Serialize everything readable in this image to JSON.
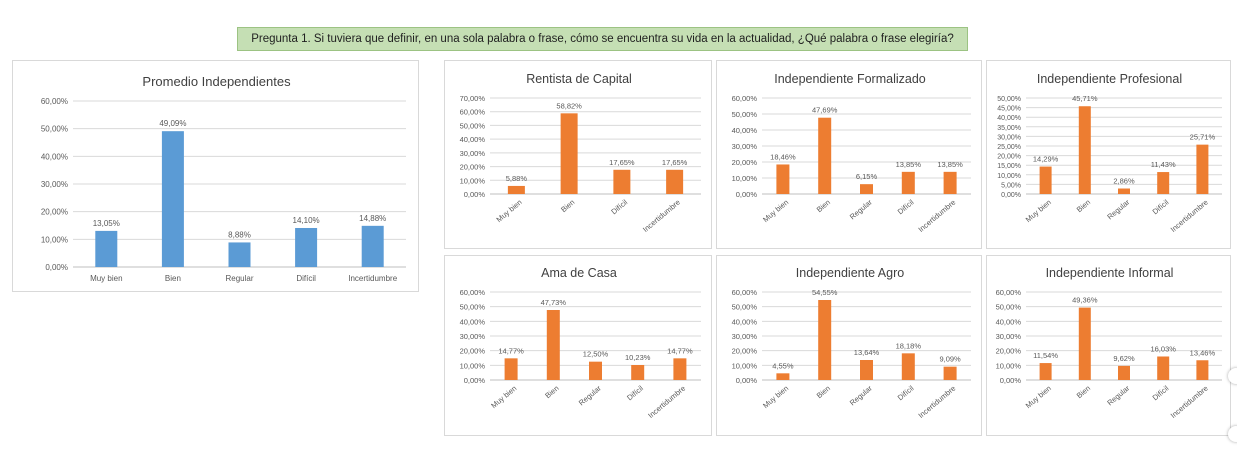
{
  "header": {
    "question": "Pregunta 1. Si tuviera que definir, en una sola palabra o frase, cómo se encuentra su vida en la actualidad, ¿Qué palabra o frase elegiría?"
  },
  "colors": {
    "summary_bar": "#5b9bd5",
    "segment_bar": "#ed7d31",
    "gridline": "#d9d9d9",
    "banner_bg": "#c5dfb4"
  },
  "chart_data": [
    {
      "id": "promedio",
      "type": "bar",
      "title": "Promedio Independientes",
      "categories": [
        "Muy bien",
        "Bien",
        "Regular",
        "Difícil",
        "Incertidumbre"
      ],
      "values": [
        13.05,
        49.09,
        8.88,
        14.1,
        14.88
      ],
      "value_labels": [
        "13,05%",
        "49,09%",
        "8,88%",
        "14,10%",
        "14,88%"
      ],
      "y_ticks": [
        "0,00%",
        "10,00%",
        "20,00%",
        "30,00%",
        "40,00%",
        "50,00%",
        "60,00%"
      ],
      "ylim": [
        0,
        60
      ],
      "grid": true,
      "xlabel": "",
      "ylabel": ""
    },
    {
      "id": "rentista",
      "type": "bar",
      "title": "Rentista de Capital",
      "categories": [
        "Muy bien",
        "Bien",
        "Difícil",
        "Incertidumbre"
      ],
      "values": [
        5.88,
        58.82,
        17.65,
        17.65
      ],
      "value_labels": [
        "5,88%",
        "58,82%",
        "17,65%",
        "17,65%"
      ],
      "y_ticks": [
        "0,00%",
        "10,00%",
        "20,00%",
        "30,00%",
        "40,00%",
        "50,00%",
        "60,00%",
        "70,00%"
      ],
      "ylim": [
        0,
        70
      ],
      "grid": true,
      "xlabel": "",
      "ylabel": ""
    },
    {
      "id": "formalizado",
      "type": "bar",
      "title": "Independiente Formalizado",
      "categories": [
        "Muy bien",
        "Bien",
        "Regular",
        "Difícil",
        "Incertidumbre"
      ],
      "values": [
        18.46,
        47.69,
        6.15,
        13.85,
        13.85
      ],
      "value_labels": [
        "18,46%",
        "47,69%",
        "6,15%",
        "13,85%",
        "13,85%"
      ],
      "y_ticks": [
        "0,00%",
        "10,00%",
        "20,00%",
        "30,00%",
        "40,00%",
        "50,00%",
        "60,00%"
      ],
      "ylim": [
        0,
        60
      ],
      "grid": true,
      "xlabel": "",
      "ylabel": ""
    },
    {
      "id": "profesional",
      "type": "bar",
      "title": "Independiente Profesional",
      "categories": [
        "Muy bien",
        "Bien",
        "Regular",
        "Difícil",
        "Incertidumbre"
      ],
      "values": [
        14.29,
        45.71,
        2.86,
        11.43,
        25.71
      ],
      "value_labels": [
        "14,29%",
        "45,71%",
        "2,86%",
        "11,43%",
        "25,71%"
      ],
      "y_ticks": [
        "0,00%",
        "5,00%",
        "10,00%",
        "15,00%",
        "20,00%",
        "25,00%",
        "30,00%",
        "35,00%",
        "40,00%",
        "45,00%",
        "50,00%"
      ],
      "ylim": [
        0,
        50
      ],
      "grid": true,
      "xlabel": "",
      "ylabel": ""
    },
    {
      "id": "ama",
      "type": "bar",
      "title": "Ama de Casa",
      "categories": [
        "Muy bien",
        "Bien",
        "Regular",
        "Difícil",
        "Incertidumbre"
      ],
      "values": [
        14.77,
        47.73,
        12.5,
        10.23,
        14.77
      ],
      "value_labels": [
        "14,77%",
        "47,73%",
        "12,50%",
        "10,23%",
        "14,77%"
      ],
      "y_ticks": [
        "0,00%",
        "10,00%",
        "20,00%",
        "30,00%",
        "40,00%",
        "50,00%",
        "60,00%"
      ],
      "ylim": [
        0,
        60
      ],
      "grid": true,
      "xlabel": "",
      "ylabel": ""
    },
    {
      "id": "agro",
      "type": "bar",
      "title": "Independiente Agro",
      "categories": [
        "Muy bien",
        "Bien",
        "Regular",
        "Difícil",
        "Incertidumbre"
      ],
      "values": [
        4.55,
        54.55,
        13.64,
        18.18,
        9.09
      ],
      "value_labels": [
        "4,55%",
        "54,55%",
        "13,64%",
        "18,18%",
        "9,09%"
      ],
      "y_ticks": [
        "0,00%",
        "10,00%",
        "20,00%",
        "30,00%",
        "40,00%",
        "50,00%",
        "60,00%"
      ],
      "ylim": [
        0,
        60
      ],
      "grid": true,
      "xlabel": "",
      "ylabel": ""
    },
    {
      "id": "informal",
      "type": "bar",
      "title": "Independiente Informal",
      "categories": [
        "Muy bien",
        "Bien",
        "Regular",
        "Difícil",
        "Incertidumbre"
      ],
      "values": [
        11.54,
        49.36,
        9.62,
        16.03,
        13.46
      ],
      "value_labels": [
        "11,54%",
        "49,36%",
        "9,62%",
        "16,03%",
        "13,46%"
      ],
      "y_ticks": [
        "0,00%",
        "10,00%",
        "20,00%",
        "30,00%",
        "40,00%",
        "50,00%",
        "60,00%"
      ],
      "ylim": [
        0,
        60
      ],
      "grid": true,
      "xlabel": "",
      "ylabel": ""
    }
  ]
}
